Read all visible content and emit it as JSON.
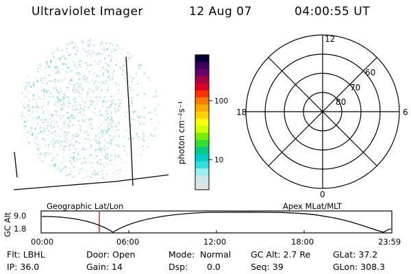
{
  "header": {
    "title": "Ultraviolet Imager",
    "date": "12 Aug 07",
    "time": "04:00:55 UT"
  },
  "colorbar": {
    "unit_label": "photon cm⁻²s⁻¹",
    "ticks": [
      "100",
      "10"
    ],
    "colors": [
      "#000033",
      "#3a005a",
      "#6a006a",
      "#aa0044",
      "#dd0022",
      "#ff3300",
      "#ff7a00",
      "#ffaa00",
      "#ffd000",
      "#ffff00",
      "#ccff00",
      "#77ee00",
      "#33dd33",
      "#00cc88",
      "#00cccc",
      "#33dddd",
      "#99eeee",
      "#cce8e8",
      "#dde4e4"
    ]
  },
  "polar_plot": {
    "mlt_labels": [
      "12",
      "18",
      "6",
      "0"
    ],
    "lat_labels": [
      "60",
      "70",
      "80"
    ]
  },
  "altitude_plot": {
    "ylabel": "GC Alt",
    "yticks": [
      "9.0",
      "1.8"
    ],
    "left_label": "Geographic Lat/Lon",
    "right_label": "Apex MLat/MLT",
    "xticks": [
      "00:00",
      "06:00",
      "12:00",
      "18:00",
      "23:59"
    ]
  },
  "info": {
    "flt": "Flt: LBHL",
    "door": "Door: Open",
    "mode_label": "Mode:",
    "mode": "Normal",
    "gc_alt": "GC Alt: 2.7 Re",
    "glat": "GLat:  37.2",
    "ip": "IP: 36.0",
    "gain": "Gain: 14",
    "dsp_label": "Dsp:",
    "dsp": "0.0",
    "seq": "Seq: 39",
    "glon": "GLon: 308.3"
  }
}
